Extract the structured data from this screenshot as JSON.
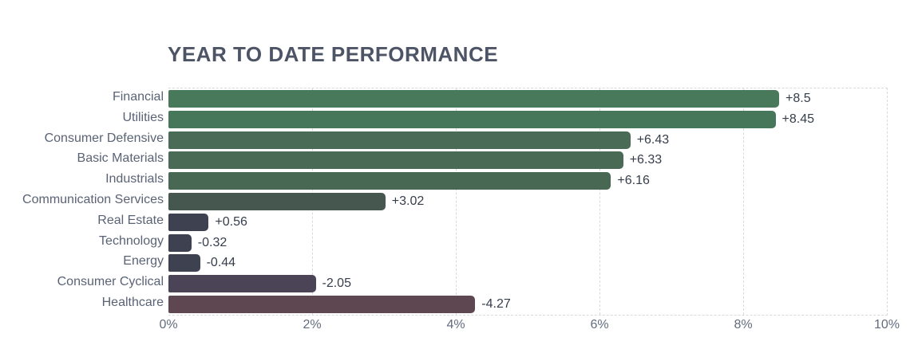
{
  "colors": {
    "background": "#ffffff",
    "title_text": "#4d5466",
    "category_text": "#5a6375",
    "value_text": "#363d4b",
    "tick_text": "#636c7e",
    "grid_dashed": "#d7d9de"
  },
  "chart_data": {
    "type": "bar",
    "orientation": "horizontal",
    "title": "YEAR TO DATE PERFORMANCE",
    "xlabel": "",
    "ylabel": "",
    "xlim": [
      0,
      10
    ],
    "x_tick_values": [
      0,
      2,
      4,
      6,
      8,
      10
    ],
    "x_tick_labels": [
      "0%",
      "2%",
      "4%",
      "6%",
      "8%",
      "10%"
    ],
    "grid": "dashed-vertical",
    "legend": "none",
    "note": "bars drawn at absolute value length; sign shown in label and color",
    "categories": [
      "Financial",
      "Utilities",
      "Consumer Defensive",
      "Basic Materials",
      "Industrials",
      "Communication Services",
      "Real Estate",
      "Technology",
      "Energy",
      "Consumer Cyclical",
      "Healthcare"
    ],
    "values": [
      8.5,
      8.45,
      6.43,
      6.33,
      6.16,
      3.02,
      0.56,
      -0.32,
      -0.44,
      -2.05,
      -4.27
    ],
    "value_labels": [
      "+8.5",
      "+8.45",
      "+6.43",
      "+6.33",
      "+6.16",
      "+3.02",
      "+0.56",
      "-0.32",
      "-0.44",
      "-2.05",
      "-4.27"
    ],
    "bar_colors": [
      "#48795a",
      "#46775a",
      "#4a6b55",
      "#496a54",
      "#496853",
      "#465750",
      "#3e4150",
      "#3e4150",
      "#3e4150",
      "#4a4456",
      "#5f4751"
    ]
  }
}
